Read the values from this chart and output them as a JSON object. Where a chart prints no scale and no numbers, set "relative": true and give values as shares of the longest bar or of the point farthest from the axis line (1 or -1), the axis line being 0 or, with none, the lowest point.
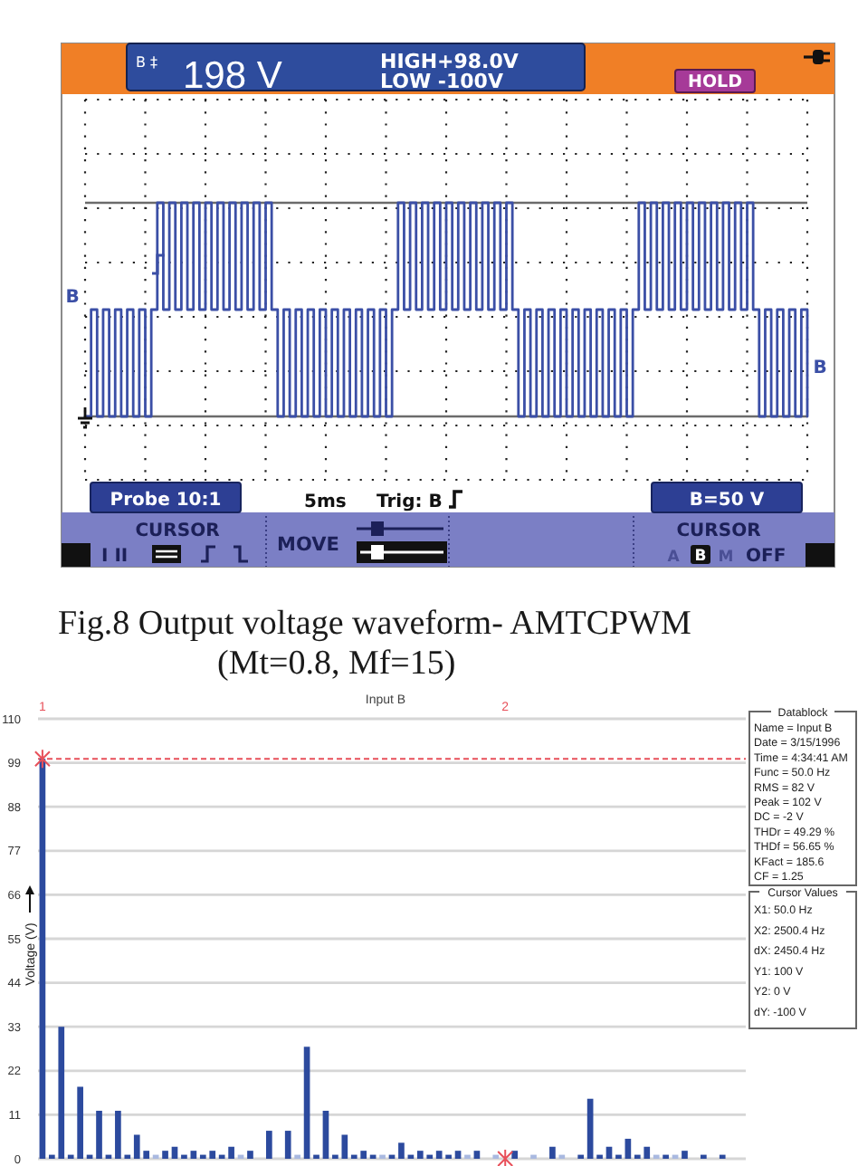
{
  "chart_data": [
    {
      "type": "step",
      "title": "Fig.8 Output voltage waveform- AMTCPWM",
      "subtitle": "(Mt=0.8, Mf=15)",
      "relative": true,
      "categories": [
        null,
        null,
        null,
        null,
        null,
        null,
        null,
        null,
        null,
        null,
        null,
        null,
        null,
        null,
        null,
        null,
        null,
        null,
        null,
        null,
        null,
        null,
        null,
        null,
        null,
        null,
        null,
        null,
        null,
        null,
        null,
        null,
        null,
        null,
        null,
        null,
        null,
        null,
        null,
        null,
        null,
        null,
        null,
        null,
        null,
        null,
        null,
        null,
        null,
        null,
        null,
        null,
        null,
        null,
        null,
        null,
        null,
        null,
        null,
        null,
        null,
        null,
        null,
        null,
        null,
        null,
        null,
        null,
        null,
        null,
        null,
        null,
        null,
        null,
        null,
        null,
        null,
        null,
        null,
        null,
        null,
        null,
        null,
        null,
        null,
        null,
        null,
        null,
        null,
        null,
        null,
        null,
        null,
        null,
        null,
        null,
        null,
        null,
        null,
        null,
        null,
        null,
        null,
        null,
        null,
        null,
        null,
        null,
        null,
        null,
        null,
        null,
        null,
        null,
        null,
        null,
        null,
        null,
        null,
        null,
        null
      ],
      "values": [
        0,
        0.5,
        0,
        0.5,
        0,
        0.5,
        0,
        0.5,
        0,
        0.5,
        0,
        0.5,
        1,
        0.5,
        1,
        0.5,
        1,
        0.5,
        1,
        0.5,
        1,
        0.5,
        1,
        0.5,
        1,
        0.5,
        1,
        0.5,
        1,
        0.5,
        1,
        0.5,
        0,
        0.5,
        0,
        0.5,
        0,
        0.5,
        0,
        0.5,
        0,
        0.5,
        0,
        0.5,
        0,
        0.5,
        0,
        0.5,
        0,
        0.5,
        0,
        0.5,
        1,
        0.5,
        1,
        0.5,
        1,
        0.5,
        1,
        0.5,
        1,
        0.5,
        1,
        0.5,
        1,
        0.5,
        1,
        0.5,
        1,
        0.5,
        1,
        0.5,
        0,
        0.5,
        0,
        0.5,
        0,
        0.5,
        0,
        0.5,
        0,
        0.5,
        0,
        0.5,
        0,
        0.5,
        0,
        0.5,
        0,
        0.5,
        0,
        0.5,
        1,
        0.5,
        1,
        0.5,
        1,
        0.5,
        1,
        0.5,
        1,
        0.5,
        1,
        0.5,
        1,
        0.5,
        1,
        0.5,
        1,
        0.5,
        1,
        0.5,
        0,
        0.5,
        0,
        0.5,
        0,
        0.5,
        0,
        0.5,
        0
      ],
      "color": "#3b4fa6",
      "grid": true,
      "ref_lines": [
        {
          "axis": "y",
          "value": 1,
          "color": "#6b6b6b"
        },
        {
          "axis": "y",
          "value": 0,
          "color": "#6b6b6b"
        }
      ],
      "annotations": [
        "B ‡",
        "198 V",
        "HIGH+98.0V",
        "LOW -100V",
        "HOLD",
        "B",
        "B",
        "Probe 10:1",
        "5ms",
        "Trig: B",
        "B=50 V",
        "CURSOR",
        "I II",
        "MOVE",
        "CURSOR",
        "A",
        "B",
        "M",
        "OFF"
      ]
    },
    {
      "type": "bar",
      "title": "Input B",
      "ylabel": "Voltage (V)",
      "categories": [
        null,
        null,
        null,
        null,
        null,
        null,
        null,
        null,
        null,
        null,
        null,
        null,
        null,
        null,
        null,
        null,
        null,
        null,
        null,
        null,
        null,
        null,
        null,
        null,
        null,
        null,
        null,
        null,
        null,
        null,
        null,
        null,
        null,
        null,
        null,
        null,
        null,
        null,
        null,
        null,
        null,
        null,
        null,
        null,
        null,
        null,
        null,
        null,
        null,
        null,
        null,
        null,
        null,
        null,
        null,
        null,
        null,
        null,
        null,
        null,
        null,
        null,
        null,
        null,
        null,
        null,
        null,
        null,
        null,
        null,
        null,
        null,
        null,
        null,
        null
      ],
      "series": [
        {
          "values": [
            100,
            1,
            33,
            1,
            18,
            1,
            12,
            1,
            12,
            1,
            6,
            2,
            1,
            2,
            3,
            1,
            2,
            1,
            2,
            1,
            3,
            1,
            2,
            null,
            7,
            null,
            7,
            1,
            28,
            1,
            12,
            1,
            6,
            1,
            2,
            1,
            1,
            1,
            4,
            1,
            2,
            1,
            2,
            1,
            2,
            1,
            2,
            null,
            1,
            null,
            2,
            null,
            1,
            null,
            3,
            1,
            null,
            1,
            15,
            1,
            3,
            1,
            5,
            1,
            3,
            1,
            1,
            1,
            2,
            null,
            1,
            null,
            1,
            null,
            null
          ],
          "colors": [
            "#2c4a9e",
            "#2c4a9e",
            "#2c4a9e",
            "#2c4a9e",
            "#2c4a9e",
            "#2c4a9e",
            "#2c4a9e",
            "#2c4a9e",
            "#2c4a9e",
            "#2c4a9e",
            "#2c4a9e",
            "#2c4a9e",
            "#a9b9e0",
            "#2c4a9e",
            "#2c4a9e",
            "#2c4a9e",
            "#2c4a9e",
            "#2c4a9e",
            "#2c4a9e",
            "#2c4a9e",
            "#2c4a9e",
            "#a9b9e0",
            "#2c4a9e",
            null,
            "#2c4a9e",
            null,
            "#2c4a9e",
            "#a9b9e0",
            "#2c4a9e",
            "#2c4a9e",
            "#2c4a9e",
            "#2c4a9e",
            "#2c4a9e",
            "#2c4a9e",
            "#2c4a9e",
            "#2c4a9e",
            "#a9b9e0",
            "#2c4a9e",
            "#2c4a9e",
            "#2c4a9e",
            "#2c4a9e",
            "#2c4a9e",
            "#2c4a9e",
            "#2c4a9e",
            "#2c4a9e",
            "#a9b9e0",
            "#2c4a9e",
            null,
            "#a9b9e0",
            null,
            "#2c4a9e",
            null,
            "#a9b9e0",
            null,
            "#2c4a9e",
            "#a9b9e0",
            null,
            "#2c4a9e",
            "#2c4a9e",
            "#2c4a9e",
            "#2c4a9e",
            "#2c4a9e",
            "#2c4a9e",
            "#2c4a9e",
            "#2c4a9e",
            "#a9b9e0",
            "#2c4a9e",
            "#a9b9e0",
            "#2c4a9e",
            null,
            "#2c4a9e",
            null,
            "#2c4a9e",
            null,
            null
          ]
        },
        {
          "type": "scatter",
          "name": "1",
          "color": "#e8505a",
          "marker": "cross",
          "values": [
            100,
            null,
            null,
            null,
            null,
            null,
            null,
            null,
            null,
            null,
            null,
            null,
            null,
            null,
            null,
            null,
            null,
            null,
            null,
            null,
            null,
            null,
            null,
            null,
            null,
            null,
            null,
            null,
            null,
            null,
            null,
            null,
            null,
            null,
            null,
            null,
            null,
            null,
            null,
            null,
            null,
            null,
            null,
            null,
            null,
            null,
            null,
            null,
            null,
            null,
            null,
            null,
            null,
            null,
            null,
            null,
            null,
            null,
            null,
            null,
            null,
            null,
            null,
            null,
            null,
            null,
            null,
            null,
            null,
            null,
            null,
            null,
            null,
            null,
            null
          ]
        },
        {
          "type": "scatter",
          "name": "2",
          "color": "#e8505a",
          "marker": "cross",
          "values": [
            null,
            null,
            null,
            null,
            null,
            null,
            null,
            null,
            null,
            null,
            null,
            null,
            null,
            null,
            null,
            null,
            null,
            null,
            null,
            null,
            null,
            null,
            null,
            null,
            null,
            null,
            null,
            null,
            null,
            null,
            null,
            null,
            null,
            null,
            null,
            null,
            null,
            null,
            null,
            null,
            null,
            null,
            null,
            null,
            null,
            null,
            null,
            null,
            null,
            0,
            null,
            null,
            null,
            null,
            null,
            null,
            null,
            null,
            null,
            null,
            null,
            null,
            null,
            null,
            null,
            null,
            null,
            null,
            null,
            null,
            null,
            null,
            null,
            null,
            null
          ]
        }
      ],
      "ylim": [
        0,
        110
      ],
      "yticks": [
        0,
        11,
        22,
        33,
        44,
        55,
        66,
        77,
        88,
        99,
        110
      ],
      "grid": "y",
      "tick_labels": "y",
      "ref_lines": [
        {
          "axis": "y",
          "value": 100,
          "color": "#e8505a",
          "line_style": "dashed"
        }
      ],
      "annotations": [
        "Datablock",
        "Name = Input B",
        "Date = 3/15/1996",
        "Time = 4:34:41 AM",
        "Func = 50.0 Hz",
        "RMS = 82 V",
        "Peak = 102 V",
        "DC = -2 V",
        "THDr = 49.29 %",
        "THDf = 56.65 %",
        "KFact = 185.6",
        "CF = 1.25",
        "Cursor Values",
        "X1: 50.0 Hz",
        "X2: 2500.4 Hz",
        "dX: 2450.4 Hz",
        "Y1: 100 V",
        "Y2: 0 V",
        "dY: -100 V"
      ]
    }
  ]
}
